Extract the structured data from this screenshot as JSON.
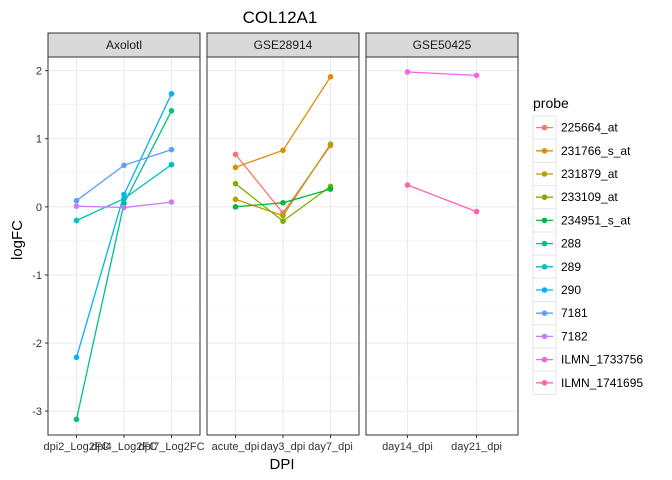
{
  "chart_data": {
    "type": "line",
    "title": "COL12A1",
    "xlabel": "DPI",
    "ylabel": "logFC",
    "ylim": [
      -3.35,
      2.2
    ],
    "yticks": [
      2,
      1,
      0,
      -1,
      -2,
      -3
    ],
    "grid": true,
    "legend": {
      "title": "probe",
      "position": "right"
    },
    "probes": [
      {
        "name": "225664_at",
        "color": "#F8766D"
      },
      {
        "name": "231766_s_at",
        "color": "#DE8C00"
      },
      {
        "name": "231879_at",
        "color": "#B79F00"
      },
      {
        "name": "233109_at",
        "color": "#7CAE00"
      },
      {
        "name": "234951_s_at",
        "color": "#00BA38"
      },
      {
        "name": "288",
        "color": "#00C08B"
      },
      {
        "name": "289",
        "color": "#00BFC4"
      },
      {
        "name": "290",
        "color": "#00B4F0"
      },
      {
        "name": "7181",
        "color": "#619CFF"
      },
      {
        "name": "7182",
        "color": "#C77CFF"
      },
      {
        "name": "ILMN_1733756",
        "color": "#F564E3"
      },
      {
        "name": "ILMN_1741695",
        "color": "#FF64B0"
      }
    ],
    "panels": [
      {
        "label": "Axolotl",
        "categories": [
          "dpi2_Log2FC",
          "dpi4_Log2FC",
          "dpi7_Log2FC"
        ],
        "series": [
          {
            "probe": "288",
            "values": [
              -3.12,
              0.05,
              1.41
            ]
          },
          {
            "probe": "289",
            "values": [
              -0.2,
              0.12,
              0.62
            ]
          },
          {
            "probe": "290",
            "values": [
              -2.21,
              0.18,
              1.66
            ]
          },
          {
            "probe": "7181",
            "values": [
              0.09,
              0.61,
              0.84
            ]
          },
          {
            "probe": "7182",
            "values": [
              0.01,
              -0.01,
              0.07
            ]
          }
        ]
      },
      {
        "label": "GSE28914",
        "categories": [
          "acute_dpi",
          "day3_dpi",
          "day7_dpi"
        ],
        "series": [
          {
            "probe": "225664_at",
            "values": [
              0.77,
              -0.09,
              0.9
            ]
          },
          {
            "probe": "231766_s_at",
            "values": [
              0.58,
              0.83,
              1.91
            ]
          },
          {
            "probe": "231879_at",
            "values": [
              0.11,
              -0.13,
              0.92
            ]
          },
          {
            "probe": "233109_at",
            "values": [
              0.34,
              -0.21,
              0.3
            ]
          },
          {
            "probe": "234951_s_at",
            "values": [
              0.0,
              0.06,
              0.26
            ]
          }
        ]
      },
      {
        "label": "GSE50425",
        "categories": [
          "day14_dpi",
          "day21_dpi"
        ],
        "series": [
          {
            "probe": "ILMN_1733756",
            "values": [
              1.98,
              1.93
            ]
          },
          {
            "probe": "ILMN_1741695",
            "values": [
              0.32,
              -0.07
            ]
          }
        ]
      }
    ]
  }
}
